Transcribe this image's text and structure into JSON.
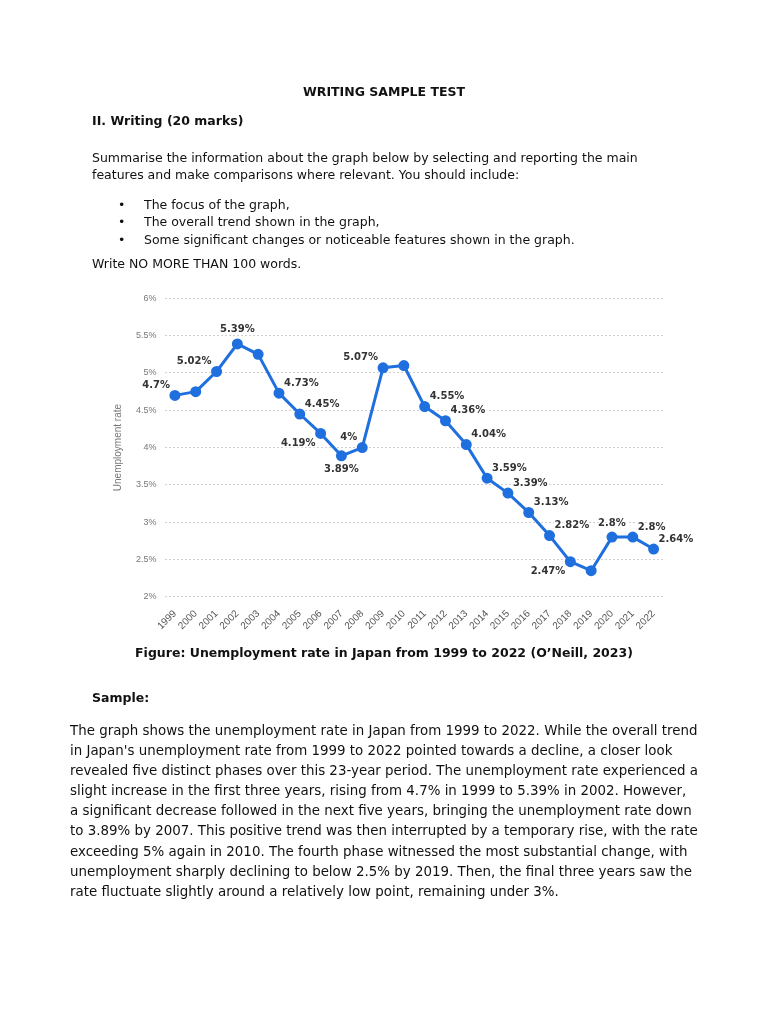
{
  "chart_data": {
    "type": "line",
    "title": "WRITING SAMPLE TEST",
    "ylabel": "Unemployment rate",
    "annotations": [
      "II. Writing (20 marks)",
      "Summarise the information about the graph below by selecting and reporting the main features and make comparisons where relevant. You should include:",
      "• The focus of the graph,",
      "• The overall trend shown in the graph,",
      "• Some significant changes or noticeable features shown in the graph.",
      "Write NO MORE THAN 100 words.",
      "Figure: Unemployment rate in Japan from 1999 to 2022 (O’Neill, 2023)",
      "Sample:",
      "The graph shows the unemployment rate in Japan from 1999 to 2022. While the overall trend in Japan's unemployment rate from 1999 to 2022 pointed towards a decline, a closer look revealed five distinct phases over this 23-year period. The unemployment rate experienced a slight increase in the first three years, rising from 4.7% in 1999 to 5.39% in 2002. However, a significant decrease followed in the next five years, bringing the unemployment rate down to 3.89% by 2007. This positive trend was then interrupted by a temporary rise, with the rate exceeding 5% again in 2010. The fourth phase witnessed the most substantial change, with unemployment sharply declining to below 2.5% by 2019. Then, the final three years saw the rate fluctuate slightly around a relatively low point, remaining under 3%."
    ],
    "categories": [
      "1999",
      "2000",
      "2001",
      "2002",
      "2003",
      "2004",
      "2005",
      "2006",
      "2007",
      "2008",
      "2009",
      "2010",
      "2011",
      "2012",
      "2013",
      "2014",
      "2015",
      "2016",
      "2017",
      "2018",
      "2019",
      "2020",
      "2021",
      "2022"
    ],
    "values": [
      4.7,
      4.75,
      5.02,
      5.39,
      5.25,
      4.73,
      4.45,
      4.19,
      3.89,
      4,
      5.07,
      5.1,
      4.55,
      4.36,
      4.04,
      3.59,
      3.39,
      3.13,
      2.82,
      2.47,
      2.35,
      2.8,
      2.8,
      2.64
    ],
    "value_labels": [
      "4.7%",
      null,
      "5.02%",
      "5.39%",
      null,
      "4.73%",
      "4.45%",
      "4.19%",
      "3.89%",
      "4%",
      "5.07%",
      null,
      "4.55%",
      "4.36%",
      "4.04%",
      "3.59%",
      "3.39%",
      "3.13%",
      "2.82%",
      "2.47%",
      null,
      "2.8%",
      "2.8%",
      "2.64%"
    ],
    "color": "#1f6fde",
    "ylim": [
      2,
      6
    ],
    "yticks": [
      {
        "value": 2,
        "label": "2%"
      },
      {
        "value": 2.5,
        "label": "2.5%"
      },
      {
        "value": 3,
        "label": "3%"
      },
      {
        "value": 3.5,
        "label": "3.5%"
      },
      {
        "value": 4,
        "label": "4%"
      },
      {
        "value": 4.5,
        "label": "4.5%"
      },
      {
        "value": 5,
        "label": "5%"
      },
      {
        "value": 5.5,
        "label": "5.5%"
      },
      {
        "value": 6,
        "label": "6%"
      }
    ],
    "grid": "y",
    "marker": "circle",
    "line_style": "solid",
    "legend": false
  }
}
